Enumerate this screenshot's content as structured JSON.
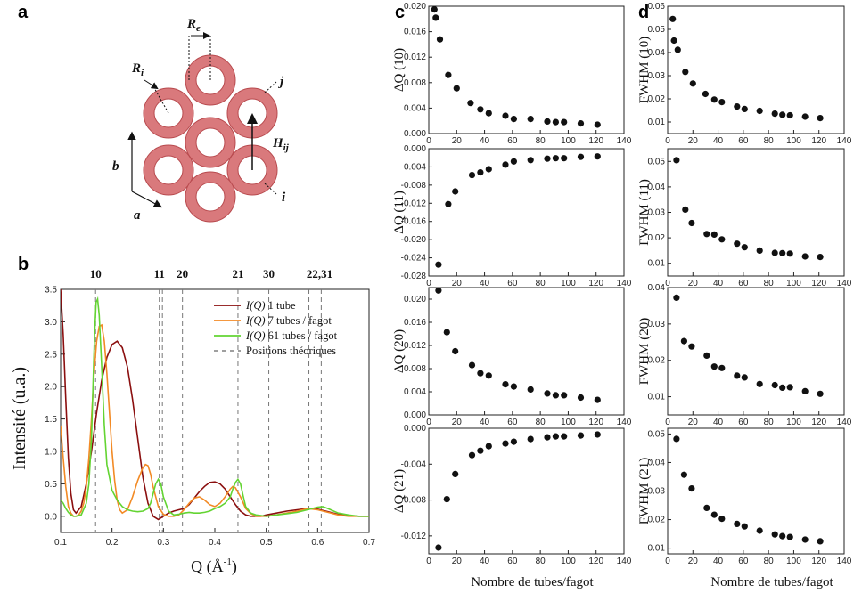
{
  "panel_labels": {
    "a": "a",
    "b": "b",
    "c": "c",
    "d": "d"
  },
  "diagram": {
    "labels": {
      "Re": "R",
      "Re_sub": "e",
      "Ri": "R",
      "Ri_sub": "i",
      "Hij": "H",
      "Hij_sub": "ij",
      "j": "j",
      "i": "i",
      "a": "a",
      "b": "b"
    },
    "tube_color": "#d9797c",
    "tube_stroke": "#b84a4e"
  },
  "spectrum": {
    "xlabel": "Q (Å",
    "xlabel_sup": "-1",
    "xlabel_close": ")",
    "ylabel": "Intensité (u.a.)",
    "legend": [
      {
        "prefix": "I(Q)",
        "text": " 1 tube",
        "color": "#8b0f0f"
      },
      {
        "prefix": "I(Q)",
        "text": " 7 tubes / fagot",
        "color": "#f28a25"
      },
      {
        "prefix": "I(Q)",
        "text": " 61 tubes / fagot",
        "color": "#63d432"
      },
      {
        "prefix": "",
        "text": "Positions théoriques",
        "color": "#666666"
      }
    ],
    "positions": [
      {
        "label": "10",
        "q": 0.168
      },
      {
        "label": "11",
        "q": 0.292
      },
      {
        "label": "",
        "q": 0.298
      },
      {
        "label": "20",
        "q": 0.337
      },
      {
        "label": "21",
        "q": 0.445
      },
      {
        "label": "30",
        "q": 0.505
      },
      {
        "label": "22,31",
        "q": 0.583
      },
      {
        "label": "",
        "q": 0.607
      }
    ],
    "x_ticks": [
      "0.1",
      "0.2",
      "0.3",
      "0.4",
      "0.5",
      "0.6",
      "0.7"
    ],
    "y_ticks": [
      "0.0",
      "0.5",
      "1.0",
      "1.5",
      "2.0",
      "2.5",
      "3.0",
      "3.5"
    ]
  },
  "chart_data": [
    {
      "type": "line",
      "panel": "b",
      "xlabel": "Q (Å-1)",
      "ylabel": "Intensité (u.a.)",
      "xlim": [
        0.1,
        0.7
      ],
      "ylim": [
        -0.25,
        3.5
      ],
      "series": [
        {
          "name": "I(Q) 1 tube",
          "color": "#8b0f0f",
          "x": [
            0.1,
            0.105,
            0.11,
            0.115,
            0.12,
            0.125,
            0.13,
            0.14,
            0.15,
            0.16,
            0.17,
            0.18,
            0.19,
            0.2,
            0.21,
            0.22,
            0.23,
            0.24,
            0.25,
            0.26,
            0.27,
            0.28,
            0.29,
            0.3,
            0.31,
            0.32,
            0.33,
            0.34,
            0.35,
            0.36,
            0.37,
            0.38,
            0.39,
            0.4,
            0.41,
            0.42,
            0.43,
            0.44,
            0.45,
            0.46,
            0.47,
            0.48,
            0.49,
            0.5,
            0.52,
            0.54,
            0.56,
            0.58,
            0.6,
            0.62,
            0.64,
            0.66,
            0.68,
            0.7
          ],
          "y": [
            3.5,
            2.8,
            1.8,
            0.9,
            0.35,
            0.1,
            0.05,
            0.15,
            0.5,
            1.0,
            1.6,
            2.1,
            2.45,
            2.65,
            2.7,
            2.6,
            2.3,
            1.8,
            1.2,
            0.6,
            0.2,
            0.0,
            -0.05,
            0.0,
            0.05,
            0.08,
            0.1,
            0.12,
            0.18,
            0.28,
            0.38,
            0.46,
            0.52,
            0.53,
            0.5,
            0.42,
            0.3,
            0.18,
            0.08,
            0.02,
            0.0,
            0.0,
            0.0,
            0.02,
            0.05,
            0.08,
            0.1,
            0.12,
            0.11,
            0.07,
            0.03,
            0.01,
            0.0,
            0.0
          ]
        },
        {
          "name": "I(Q) 7 tubes / fagot",
          "color": "#f28a25",
          "x": [
            0.1,
            0.105,
            0.11,
            0.115,
            0.12,
            0.125,
            0.13,
            0.135,
            0.14,
            0.145,
            0.15,
            0.155,
            0.16,
            0.165,
            0.17,
            0.175,
            0.18,
            0.185,
            0.19,
            0.195,
            0.2,
            0.205,
            0.21,
            0.215,
            0.22,
            0.23,
            0.24,
            0.25,
            0.26,
            0.265,
            0.27,
            0.275,
            0.28,
            0.29,
            0.3,
            0.31,
            0.32,
            0.33,
            0.34,
            0.35,
            0.36,
            0.37,
            0.38,
            0.39,
            0.4,
            0.41,
            0.42,
            0.43,
            0.435,
            0.44,
            0.45,
            0.46,
            0.47,
            0.48,
            0.5,
            0.52,
            0.54,
            0.56,
            0.58,
            0.6,
            0.62,
            0.64,
            0.66,
            0.68,
            0.7
          ],
          "y": [
            1.4,
            0.9,
            0.45,
            0.15,
            0.05,
            0.0,
            0.0,
            0.02,
            0.08,
            0.2,
            0.45,
            0.9,
            1.5,
            2.2,
            2.7,
            2.93,
            2.95,
            2.7,
            2.2,
            1.6,
            1.0,
            0.55,
            0.25,
            0.1,
            0.05,
            0.1,
            0.3,
            0.55,
            0.75,
            0.8,
            0.78,
            0.65,
            0.45,
            0.15,
            0.03,
            0.0,
            0.0,
            0.02,
            0.1,
            0.2,
            0.28,
            0.3,
            0.25,
            0.18,
            0.15,
            0.2,
            0.3,
            0.42,
            0.46,
            0.44,
            0.3,
            0.12,
            0.04,
            0.0,
            0.0,
            0.02,
            0.05,
            0.08,
            0.12,
            0.1,
            0.06,
            0.02,
            0.0,
            0.0,
            0.0
          ]
        },
        {
          "name": "I(Q) 61 tubes / fagot",
          "color": "#63d432",
          "x": [
            0.1,
            0.105,
            0.11,
            0.115,
            0.12,
            0.125,
            0.13,
            0.14,
            0.15,
            0.155,
            0.16,
            0.163,
            0.166,
            0.169,
            0.172,
            0.175,
            0.18,
            0.185,
            0.19,
            0.2,
            0.21,
            0.22,
            0.23,
            0.24,
            0.25,
            0.26,
            0.27,
            0.275,
            0.28,
            0.285,
            0.29,
            0.295,
            0.3,
            0.31,
            0.32,
            0.33,
            0.34,
            0.35,
            0.36,
            0.37,
            0.38,
            0.39,
            0.4,
            0.41,
            0.42,
            0.43,
            0.435,
            0.44,
            0.445,
            0.45,
            0.455,
            0.46,
            0.47,
            0.48,
            0.5,
            0.52,
            0.54,
            0.56,
            0.58,
            0.6,
            0.61,
            0.62,
            0.64,
            0.66,
            0.68,
            0.7
          ],
          "y": [
            0.25,
            0.2,
            0.12,
            0.06,
            0.02,
            0.0,
            0.0,
            0.02,
            0.2,
            0.5,
            1.2,
            2.0,
            2.8,
            3.3,
            3.35,
            3.1,
            2.3,
            1.4,
            0.8,
            0.4,
            0.25,
            0.15,
            0.1,
            0.08,
            0.07,
            0.08,
            0.12,
            0.2,
            0.35,
            0.5,
            0.57,
            0.5,
            0.3,
            0.08,
            0.02,
            0.03,
            0.05,
            0.06,
            0.05,
            0.05,
            0.06,
            0.08,
            0.12,
            0.15,
            0.2,
            0.3,
            0.42,
            0.52,
            0.57,
            0.5,
            0.32,
            0.15,
            0.05,
            0.02,
            0.0,
            0.02,
            0.04,
            0.06,
            0.1,
            0.14,
            0.15,
            0.12,
            0.05,
            0.02,
            0.0,
            0.0
          ]
        }
      ]
    },
    {
      "type": "scatter",
      "panel": "c",
      "ylabel": "ΔQ (10)",
      "xlim": [
        0,
        140
      ],
      "ylim": [
        0.0,
        0.02
      ],
      "yticks": [
        "0.000",
        "0.004",
        "0.008",
        "0.012",
        "0.016",
        "0.020"
      ],
      "x": [
        4,
        5,
        8,
        14,
        20,
        30,
        37,
        43,
        55,
        61,
        73,
        85,
        91,
        97,
        109,
        121
      ],
      "y": [
        0.0195,
        0.0182,
        0.0148,
        0.0092,
        0.0071,
        0.0048,
        0.0038,
        0.0032,
        0.0028,
        0.0023,
        0.0023,
        0.0019,
        0.0018,
        0.0018,
        0.0016,
        0.0014
      ]
    },
    {
      "type": "scatter",
      "panel": "c",
      "ylabel": "ΔQ (11)",
      "xlim": [
        0,
        140
      ],
      "ylim": [
        -0.028,
        0.0
      ],
      "yticks": [
        "-0.028",
        "-0.024",
        "-0.020",
        "-0.016",
        "-0.012",
        "-0.008",
        "-0.004",
        "0.000"
      ],
      "x": [
        7,
        14,
        19,
        31,
        37,
        43,
        55,
        61,
        73,
        85,
        91,
        97,
        109,
        121
      ],
      "y": [
        -0.0255,
        -0.0122,
        -0.0094,
        -0.0058,
        -0.0052,
        -0.0045,
        -0.0035,
        -0.0028,
        -0.0025,
        -0.0022,
        -0.0021,
        -0.0021,
        -0.0018,
        -0.0017
      ]
    },
    {
      "type": "scatter",
      "panel": "c",
      "ylabel": "ΔQ (20)",
      "xlim": [
        0,
        140
      ],
      "ylim": [
        0.0,
        0.022
      ],
      "yticks": [
        "0.000",
        "0.004",
        "0.008",
        "0.012",
        "0.016",
        "0.020"
      ],
      "x": [
        7,
        13,
        19,
        31,
        37,
        43,
        55,
        61,
        73,
        85,
        91,
        97,
        109,
        121
      ],
      "y": [
        0.0215,
        0.0143,
        0.011,
        0.0086,
        0.0072,
        0.0068,
        0.0053,
        0.0049,
        0.0044,
        0.0037,
        0.0034,
        0.0034,
        0.003,
        0.0026
      ]
    },
    {
      "type": "scatter",
      "panel": "c",
      "ylabel": "ΔQ (21)",
      "xlim": [
        0,
        140
      ],
      "ylim": [
        -0.014,
        0.0
      ],
      "yticks": [
        "-0.012",
        "-0.008",
        "-0.004",
        "0.000"
      ],
      "x": [
        7,
        13,
        19,
        31,
        37,
        43,
        55,
        61,
        73,
        85,
        91,
        97,
        109,
        121
      ],
      "y": [
        -0.0133,
        -0.0079,
        -0.0051,
        -0.003,
        -0.0025,
        -0.002,
        -0.0017,
        -0.0015,
        -0.0012,
        -0.001,
        -0.0009,
        -0.0009,
        -0.0008,
        -0.0007
      ]
    },
    {
      "type": "scatter",
      "panel": "d",
      "ylabel": "FWHM (10)",
      "xlim": [
        0,
        140
      ],
      "ylim": [
        0.005,
        0.06
      ],
      "yticks": [
        "0.01",
        "0.02",
        "0.03",
        "0.04",
        "0.05",
        "0.06"
      ],
      "x": [
        4,
        5,
        8,
        14,
        20,
        30,
        37,
        43,
        55,
        61,
        73,
        85,
        91,
        97,
        109,
        121
      ],
      "y": [
        0.0545,
        0.0452,
        0.0412,
        0.0316,
        0.0266,
        0.0221,
        0.0197,
        0.0186,
        0.0167,
        0.0156,
        0.0148,
        0.0136,
        0.0131,
        0.0129,
        0.0123,
        0.0117
      ]
    },
    {
      "type": "scatter",
      "panel": "d",
      "ylabel": "FWHM (11)",
      "xlim": [
        0,
        140
      ],
      "ylim": [
        0.005,
        0.055
      ],
      "yticks": [
        "0.01",
        "0.02",
        "0.03",
        "0.04",
        "0.05"
      ],
      "x": [
        7,
        14,
        19,
        31,
        37,
        43,
        55,
        61,
        73,
        85,
        91,
        97,
        109,
        121
      ],
      "y": [
        0.0505,
        0.0311,
        0.0258,
        0.0215,
        0.0213,
        0.0194,
        0.0177,
        0.0163,
        0.015,
        0.0141,
        0.014,
        0.0138,
        0.0127,
        0.0125
      ]
    },
    {
      "type": "scatter",
      "panel": "d",
      "ylabel": "FWHM (20)",
      "xlim": [
        0,
        140
      ],
      "ylim": [
        0.005,
        0.04
      ],
      "yticks": [
        "0.01",
        "0.02",
        "0.03",
        "0.04"
      ],
      "x": [
        7,
        13,
        19,
        31,
        37,
        43,
        55,
        61,
        73,
        85,
        91,
        97,
        109,
        121
      ],
      "y": [
        0.0372,
        0.0253,
        0.0238,
        0.0213,
        0.0183,
        0.0179,
        0.0158,
        0.0153,
        0.0135,
        0.0132,
        0.0125,
        0.0126,
        0.0115,
        0.0108
      ]
    },
    {
      "type": "scatter",
      "panel": "d",
      "ylabel": "FWHM (21)",
      "xlim": [
        0,
        140
      ],
      "ylim": [
        0.008,
        0.052
      ],
      "yticks": [
        "0.01",
        "0.02",
        "0.03",
        "0.04",
        "0.05"
      ],
      "x": [
        7,
        13,
        19,
        31,
        37,
        43,
        55,
        61,
        73,
        85,
        91,
        97,
        109,
        121
      ],
      "y": [
        0.0483,
        0.0357,
        0.0309,
        0.0241,
        0.0217,
        0.0203,
        0.0185,
        0.0176,
        0.0161,
        0.0148,
        0.0142,
        0.0139,
        0.013,
        0.0124
      ]
    }
  ],
  "scatter_common": {
    "x_ticks": [
      "0",
      "20",
      "40",
      "60",
      "80",
      "100",
      "120",
      "140"
    ],
    "xlabel": "Nombre de tubes/fagot"
  }
}
